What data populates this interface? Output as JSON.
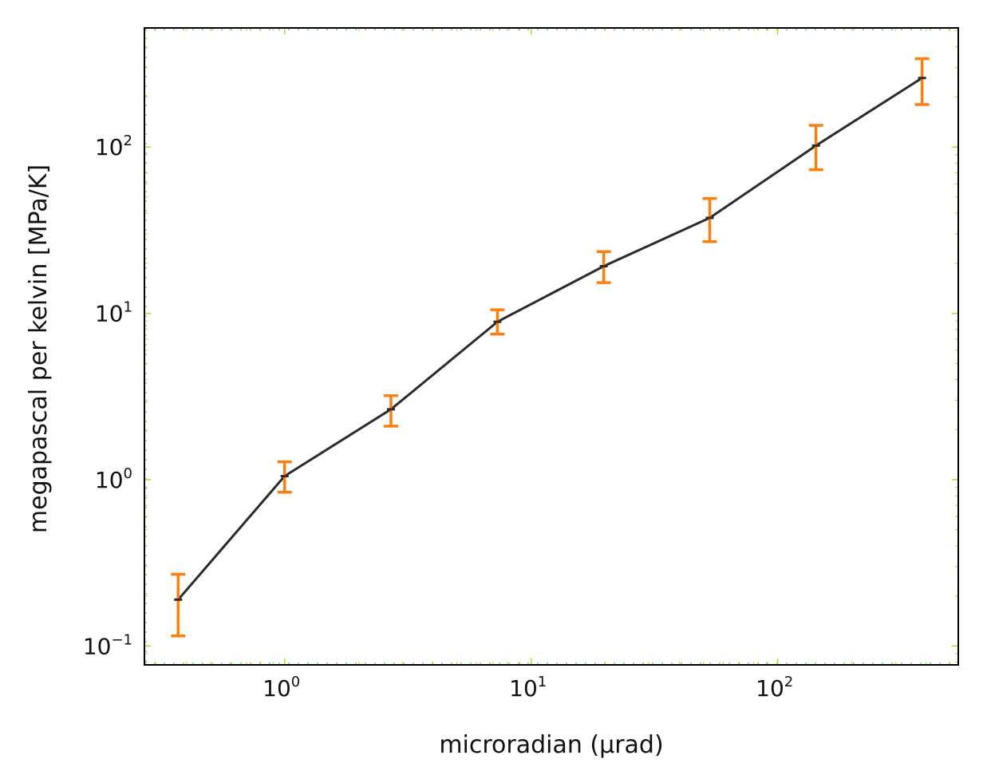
{
  "chart_data": {
    "type": "line",
    "xlabel": "microradian (μrad)",
    "ylabel": "megapascal per kelvin [MPa/K]",
    "xscale": "log",
    "yscale": "log",
    "xlim": [
      0.27,
      540
    ],
    "ylim": [
      0.077,
      520
    ],
    "grid": true,
    "legend": "none",
    "x_tick_labels": [
      {
        "value": 1,
        "base": "10",
        "exp": "0"
      },
      {
        "value": 10,
        "base": "10",
        "exp": "1"
      },
      {
        "value": 100,
        "base": "10",
        "exp": "2"
      }
    ],
    "y_tick_labels": [
      {
        "value": 0.1,
        "base": "10",
        "exp": "−1"
      },
      {
        "value": 1,
        "base": "10",
        "exp": "0"
      },
      {
        "value": 10,
        "base": "10",
        "exp": "1"
      },
      {
        "value": 100,
        "base": "10",
        "exp": "2"
      }
    ],
    "series": [
      {
        "x": [
          0.37,
          1.0,
          2.7,
          7.3,
          19.7,
          53.0,
          143.0,
          385.0
        ],
        "y": [
          0.19,
          1.05,
          2.65,
          8.9,
          19.2,
          37.5,
          102.0,
          260.0
        ],
        "yerr_low": [
          0.115,
          0.84,
          2.1,
          7.5,
          15.3,
          27.0,
          73.0,
          180.0
        ],
        "yerr_high": [
          0.27,
          1.28,
          3.2,
          10.5,
          23.5,
          49.0,
          135.0,
          340.0
        ]
      }
    ],
    "colors": {
      "line": "#2b2b2b",
      "errorbar": "#ff7f0e",
      "grid": "#7fd47f",
      "tick": "#a6e22e",
      "frame": "#000000"
    }
  }
}
